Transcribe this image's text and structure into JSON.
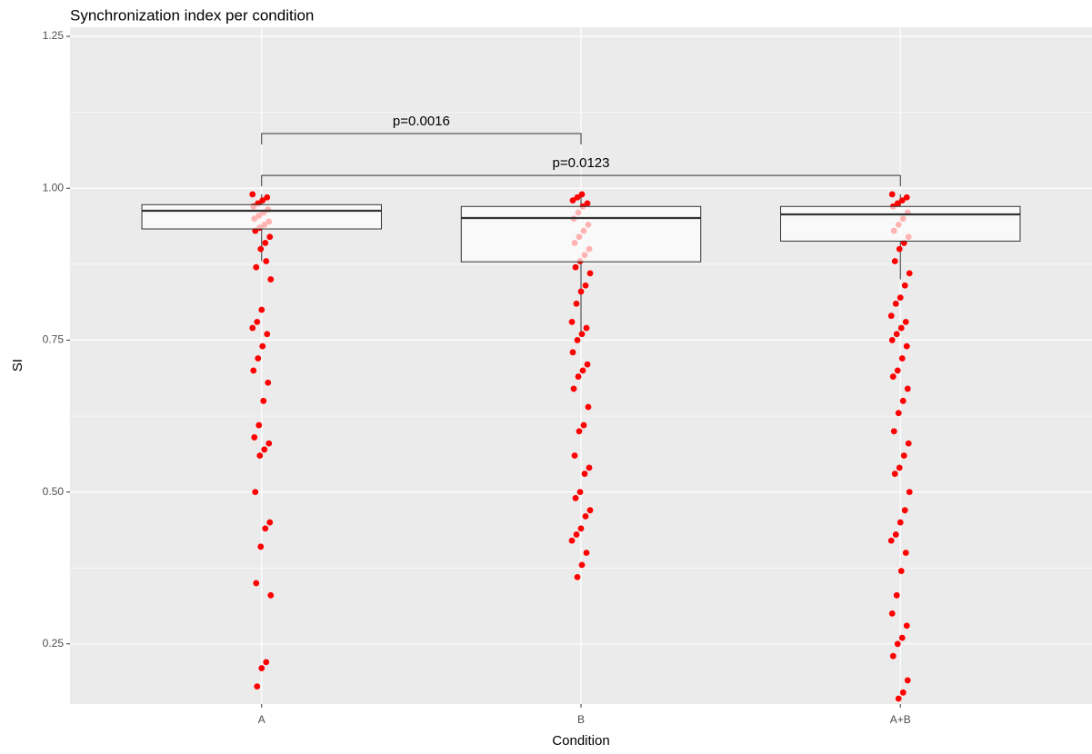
{
  "chart_data": {
    "type": "box",
    "title": "Synchronization index per condition",
    "x_label": "Condition",
    "y_label": "SI",
    "categories": [
      "A",
      "B",
      "A+B"
    ],
    "ylim": [
      0.151,
      1.265
    ],
    "yticks": [
      0.25,
      0.5,
      0.75,
      1.0,
      1.25
    ],
    "ytick_labels": [
      "0.25",
      "0.50",
      "0.75",
      "1.00",
      "1.25"
    ],
    "grid": true,
    "point_color": "#ff0000",
    "boxes": [
      {
        "q1": 0.933,
        "median": 0.963,
        "q3": 0.973,
        "whisker_low": 0.88,
        "whisker_high": 0.99
      },
      {
        "q1": 0.879,
        "median": 0.951,
        "q3": 0.97,
        "whisker_low": 0.756,
        "whisker_high": 0.99
      },
      {
        "q1": 0.913,
        "median": 0.957,
        "q3": 0.97,
        "whisker_low": 0.85,
        "whisker_high": 0.99
      }
    ],
    "points": [
      [
        0.99,
        0.985,
        0.98,
        0.975,
        0.97,
        0.965,
        0.96,
        0.955,
        0.95,
        0.945,
        0.94,
        0.935,
        0.93,
        0.92,
        0.91,
        0.9,
        0.87,
        0.85,
        0.88,
        0.8,
        0.78,
        0.77,
        0.76,
        0.74,
        0.72,
        0.7,
        0.68,
        0.65,
        0.61,
        0.59,
        0.58,
        0.57,
        0.56,
        0.5,
        0.45,
        0.44,
        0.41,
        0.35,
        0.33,
        0.22,
        0.21,
        0.18
      ],
      [
        0.99,
        0.985,
        0.98,
        0.975,
        0.97,
        0.96,
        0.95,
        0.94,
        0.93,
        0.92,
        0.91,
        0.9,
        0.89,
        0.88,
        0.87,
        0.86,
        0.84,
        0.83,
        0.81,
        0.78,
        0.77,
        0.76,
        0.75,
        0.73,
        0.71,
        0.7,
        0.69,
        0.67,
        0.64,
        0.61,
        0.6,
        0.56,
        0.54,
        0.53,
        0.5,
        0.49,
        0.47,
        0.46,
        0.44,
        0.43,
        0.42,
        0.4,
        0.38,
        0.36
      ],
      [
        0.99,
        0.985,
        0.98,
        0.975,
        0.97,
        0.96,
        0.95,
        0.94,
        0.93,
        0.92,
        0.91,
        0.9,
        0.88,
        0.86,
        0.84,
        0.82,
        0.81,
        0.79,
        0.78,
        0.77,
        0.76,
        0.75,
        0.74,
        0.72,
        0.7,
        0.69,
        0.67,
        0.65,
        0.63,
        0.6,
        0.58,
        0.56,
        0.54,
        0.53,
        0.5,
        0.47,
        0.45,
        0.43,
        0.42,
        0.4,
        0.37,
        0.33,
        0.3,
        0.28,
        0.26,
        0.25,
        0.23,
        0.19,
        0.17,
        0.16
      ]
    ],
    "annotations": [
      {
        "text": "p=0.0016",
        "from": 0,
        "to": 1,
        "y": 1.09
      },
      {
        "text": "p=0.0123",
        "from": 0,
        "to": 2,
        "y": 1.021
      }
    ]
  }
}
